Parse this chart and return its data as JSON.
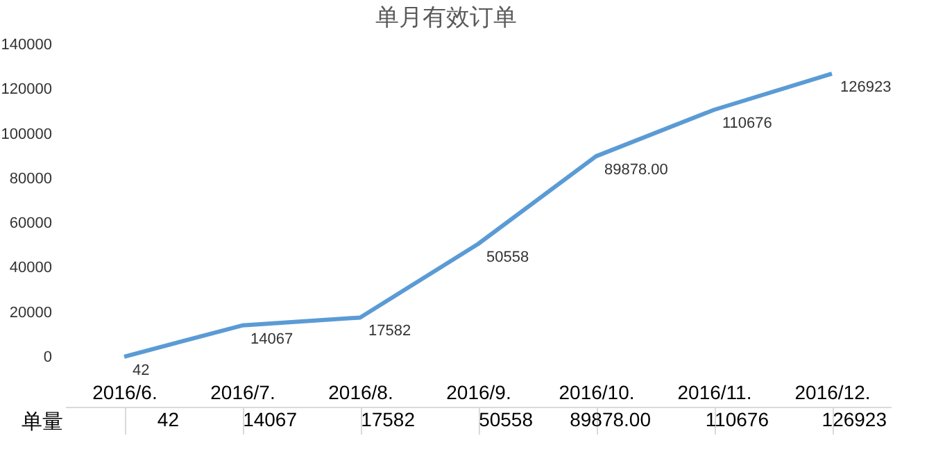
{
  "chart_data": {
    "type": "line",
    "title": "单月有效订单",
    "categories": [
      "2016/6.",
      "2016/7.",
      "2016/8.",
      "2016/9.",
      "2016/10.",
      "2016/11.",
      "2016/12."
    ],
    "series": [
      {
        "name": "单量",
        "color": "#5b9bd5",
        "values": [
          42,
          14067,
          17582,
          50558,
          89878,
          110676,
          126923
        ],
        "value_labels": [
          "42",
          "14067",
          "17582",
          "50558",
          "89878.00",
          "110676",
          "126923"
        ]
      }
    ],
    "ylim": [
      0,
      140000
    ],
    "yticks": [
      0,
      20000,
      40000,
      60000,
      80000,
      100000,
      120000,
      140000
    ],
    "grid": false,
    "marker": "none",
    "line_style": "solid"
  }
}
